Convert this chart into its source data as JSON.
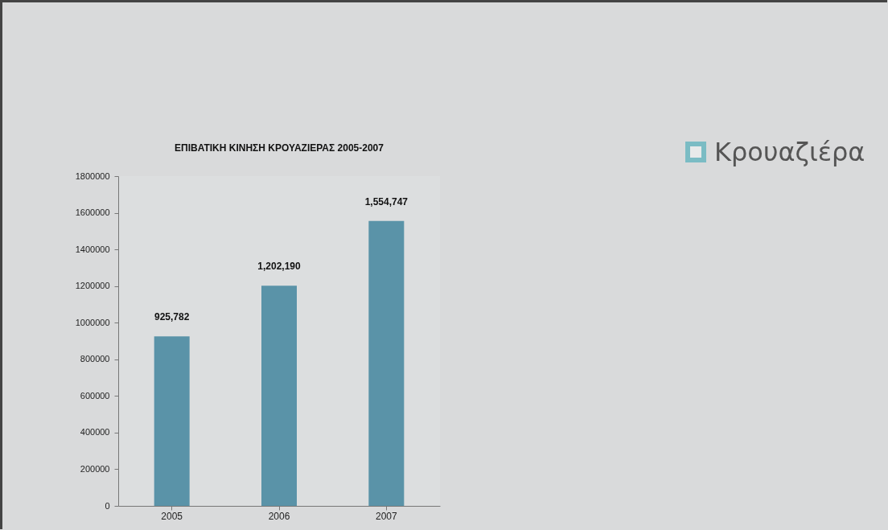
{
  "chart_data": {
    "type": "bar",
    "title": "ΕΠΙΒΑΤΙΚΗ ΚΙΝΗΣΗ ΚΡΟΥΑΖΙΕΡΑΣ 2005-2007",
    "categories": [
      "2005",
      "2006",
      "2007"
    ],
    "values": [
      925782,
      1202190,
      1554747
    ],
    "color": "#5a93a8",
    "ylim": [
      0,
      1800000
    ],
    "yticks": [
      0,
      200000,
      400000,
      600000,
      800000,
      1000000,
      1200000,
      1400000,
      1600000,
      1800000
    ],
    "value_labels": [
      "925,782",
      "1,202,190",
      "1,554,747"
    ],
    "annotations": [
      "Κρουαζιέρα"
    ]
  }
}
